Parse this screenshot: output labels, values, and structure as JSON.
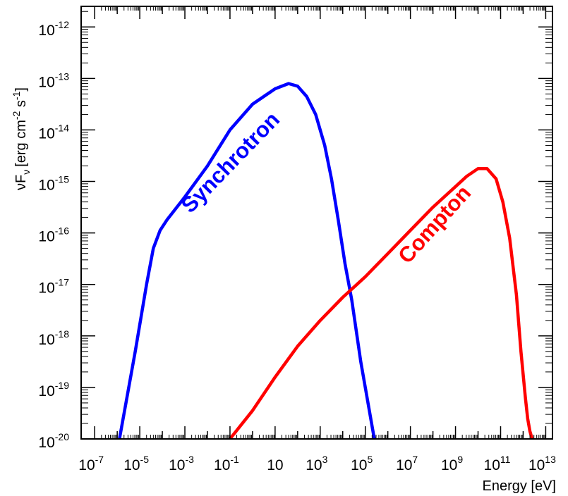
{
  "chart_data": {
    "type": "line",
    "title": "",
    "xlabel": "Energy [eV]",
    "ylabel": {
      "base": "νF",
      "sub": "ν",
      "units": "[erg cm",
      "exp1": "-2",
      "mid": " s",
      "exp2": "-1",
      "end": "]"
    },
    "xscale": "log",
    "yscale": "log",
    "xlim_log10": [
      -7.6,
      13.3
    ],
    "ylim_log10": [
      -20,
      -11.6
    ],
    "x_ticks": [
      {
        "base": "10",
        "exp": "-7",
        "log10": -7
      },
      {
        "base": "10",
        "exp": "-5",
        "log10": -5
      },
      {
        "base": "10",
        "exp": "-3",
        "log10": -3
      },
      {
        "base": "10",
        "exp": "-1",
        "log10": -1
      },
      {
        "base": "10",
        "exp": "",
        "log10": 1
      },
      {
        "base": "10",
        "exp": "3",
        "log10": 3
      },
      {
        "base": "10",
        "exp": "5",
        "log10": 5
      },
      {
        "base": "10",
        "exp": "7",
        "log10": 7
      },
      {
        "base": "10",
        "exp": "9",
        "log10": 9
      },
      {
        "base": "10",
        "exp": "11",
        "log10": 11
      },
      {
        "base": "10",
        "exp": "13",
        "log10": 13
      }
    ],
    "y_ticks": [
      {
        "base": "10",
        "exp": "-20",
        "log10": -20
      },
      {
        "base": "10",
        "exp": "-19",
        "log10": -19
      },
      {
        "base": "10",
        "exp": "-18",
        "log10": -18
      },
      {
        "base": "10",
        "exp": "-17",
        "log10": -17
      },
      {
        "base": "10",
        "exp": "-16",
        "log10": -16
      },
      {
        "base": "10",
        "exp": "-15",
        "log10": -15
      },
      {
        "base": "10",
        "exp": "-14",
        "log10": -14
      },
      {
        "base": "10",
        "exp": "-13",
        "log10": -13
      },
      {
        "base": "10",
        "exp": "-12",
        "log10": -12
      }
    ],
    "grid": false,
    "legend": "none",
    "series": [
      {
        "color": "#0000ff",
        "log10_x": [
          -5.9,
          -5.2,
          -4.7,
          -4.4,
          -4.1,
          -3.8,
          -3.0,
          -2.0,
          -1.0,
          0.0,
          1.0,
          1.6,
          2.0,
          2.4,
          2.8,
          3.2,
          3.5,
          3.8,
          4.1,
          4.4,
          4.6,
          4.8,
          5.0,
          5.2,
          5.4
        ],
        "log10_y": [
          -20.0,
          -18.3,
          -17.0,
          -16.3,
          -15.95,
          -15.75,
          -15.3,
          -14.7,
          -14.0,
          -13.5,
          -13.2,
          -13.1,
          -13.15,
          -13.35,
          -13.7,
          -14.3,
          -14.95,
          -15.75,
          -16.6,
          -17.3,
          -17.9,
          -18.5,
          -19.0,
          -19.5,
          -20.0
        ]
      },
      {
        "color": "#ff0000",
        "log10_x": [
          -1.0,
          0.0,
          1.0,
          2.0,
          3.0,
          4.0,
          5.0,
          6.0,
          7.0,
          8.0,
          9.0,
          9.5,
          10.0,
          10.4,
          10.8,
          11.1,
          11.4,
          11.7,
          11.9,
          12.1,
          12.2,
          12.3,
          12.4
        ],
        "log10_y": [
          -20.0,
          -19.45,
          -18.8,
          -18.2,
          -17.7,
          -17.25,
          -16.85,
          -16.4,
          -15.95,
          -15.5,
          -15.1,
          -14.9,
          -14.75,
          -14.75,
          -14.95,
          -15.4,
          -16.1,
          -17.2,
          -18.3,
          -19.2,
          -19.6,
          -19.85,
          -20.0
        ]
      }
    ],
    "annotations": [
      {
        "text": "Synchrotron",
        "color": "#0000ff"
      },
      {
        "text": "Compton",
        "color": "#ff0000"
      }
    ]
  }
}
